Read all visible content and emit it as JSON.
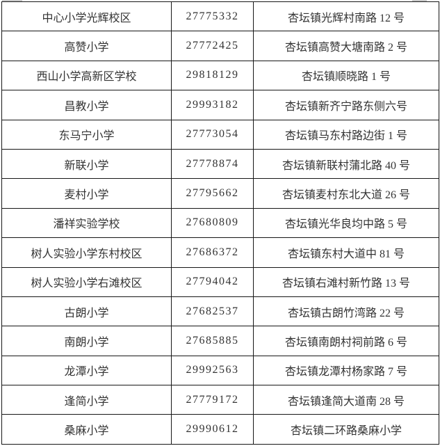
{
  "colors": {
    "border": "#161616",
    "text": "#333333",
    "background": "#ffffff"
  },
  "table": {
    "columns": [
      "school_name",
      "phone",
      "address"
    ],
    "rows": [
      {
        "name": "中心小学光辉校区",
        "phone": "27775332",
        "address": "杏坛镇光辉村南路 12 号"
      },
      {
        "name": "高赞小学",
        "phone": "27772425",
        "address": "杏坛镇高赞大塘南路 2 号"
      },
      {
        "name": "西山小学高新区学校",
        "phone": "29818129",
        "address": "杏坛镇顺晓路 1 号"
      },
      {
        "name": "昌教小学",
        "phone": "29993182",
        "address": "杏坛镇新齐宁路东侧六号"
      },
      {
        "name": "东马宁小学",
        "phone": "27773054",
        "address": "杏坛镇马东村路边街 1 号"
      },
      {
        "name": "新联小学",
        "phone": "27778874",
        "address": "杏坛镇新联村蒲北路 40 号"
      },
      {
        "name": "麦村小学",
        "phone": "27795662",
        "address": "杏坛镇麦村东北大道 26 号"
      },
      {
        "name": "潘祥实验学校",
        "phone": "27680809",
        "address": "杏坛镇光华良均中路 5 号"
      },
      {
        "name": "树人实验小学东村校区",
        "phone": "27686372",
        "address": "杏坛镇东村大道中 81 号"
      },
      {
        "name": "树人实验小学右滩校区",
        "phone": "27794042",
        "address": "杏坛镇右滩村新竹路 13 号"
      },
      {
        "name": "古朗小学",
        "phone": "27682537",
        "address": "杏坛镇古朗竹湾路 22 号"
      },
      {
        "name": "南朗小学",
        "phone": "27685885",
        "address": "杏坛镇南朗村祠前路 6 号"
      },
      {
        "name": "龙潭小学",
        "phone": "29992563",
        "address": "杏坛镇龙潭村杨家路 7 号"
      },
      {
        "name": "逢简小学",
        "phone": "27779172",
        "address": "杏坛镇逢简大道南 28 号"
      },
      {
        "name": "桑麻小学",
        "phone": "29990612",
        "address": "杏坛镇二环路桑麻小学"
      }
    ]
  }
}
